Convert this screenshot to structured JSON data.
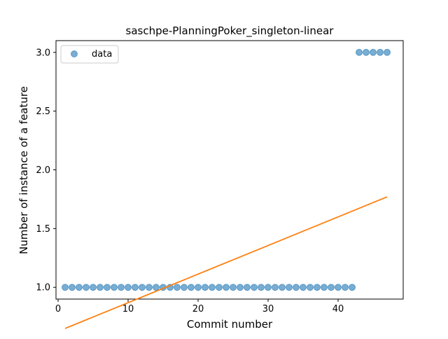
{
  "chart_data": {
    "type": "scatter",
    "title": "saschpe-PlanningPoker_singleton-linear",
    "xlabel": "Commit number",
    "ylabel": "Number of instance of a feature",
    "xlim": [
      -0.3,
      49.3
    ],
    "ylim": [
      0.9,
      3.1
    ],
    "xticks": [
      0,
      10,
      20,
      30,
      40
    ],
    "xtick_labels": [
      "0",
      "10",
      "20",
      "30",
      "40"
    ],
    "yticks": [
      1.0,
      1.5,
      2.0,
      2.5,
      3.0
    ],
    "ytick_labels": [
      "1.0",
      "1.5",
      "2.0",
      "2.5",
      "3.0"
    ],
    "grid": false,
    "legend": {
      "position": "top-left",
      "entries": [
        "data"
      ]
    },
    "series": [
      {
        "name": "data",
        "kind": "scatter",
        "color": "#1f77b4",
        "x": [
          1,
          2,
          3,
          4,
          5,
          6,
          7,
          8,
          9,
          10,
          11,
          12,
          13,
          14,
          15,
          16,
          17,
          18,
          19,
          20,
          21,
          22,
          23,
          24,
          25,
          26,
          27,
          28,
          29,
          30,
          31,
          32,
          33,
          34,
          35,
          36,
          37,
          38,
          39,
          40,
          41,
          42,
          43,
          44,
          45,
          46,
          47
        ],
        "y": [
          1,
          1,
          1,
          1,
          1,
          1,
          1,
          1,
          1,
          1,
          1,
          1,
          1,
          1,
          1,
          1,
          1,
          1,
          1,
          1,
          1,
          1,
          1,
          1,
          1,
          1,
          1,
          1,
          1,
          1,
          1,
          1,
          1,
          1,
          1,
          1,
          1,
          1,
          1,
          1,
          1,
          1,
          3,
          3,
          3,
          3,
          3
        ]
      },
      {
        "kind": "line",
        "color": "#ff7f0e",
        "x": [
          1,
          47
        ],
        "y": [
          0.65,
          1.77
        ]
      }
    ]
  }
}
